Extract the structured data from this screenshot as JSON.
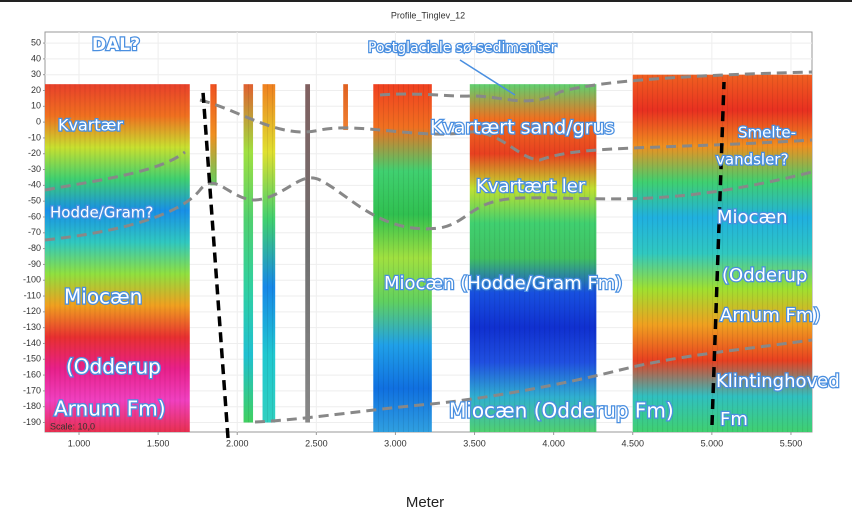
{
  "chart_data": {
    "type": "profile",
    "title": "Profile_Tinglev_12",
    "x_label": "Meter",
    "scale_note": "Scale: 10,0",
    "xlim": [
      785,
      5633
    ],
    "ylim": [
      -196,
      57
    ],
    "xticks": [
      {
        "value": 1000,
        "label": "1.000"
      },
      {
        "value": 1500,
        "label": "1.500"
      },
      {
        "value": 2000,
        "label": "2.000"
      },
      {
        "value": 2500,
        "label": "2.500"
      },
      {
        "value": 3000,
        "label": "3.000"
      },
      {
        "value": 3500,
        "label": "3.500"
      },
      {
        "value": 4000,
        "label": "4.000"
      },
      {
        "value": 4500,
        "label": "4.500"
      },
      {
        "value": 5000,
        "label": "5.000"
      },
      {
        "value": 5500,
        "label": "5.500"
      }
    ],
    "yticks": [
      50,
      40,
      30,
      20,
      10,
      0,
      -10,
      -20,
      -30,
      -40,
      -50,
      -60,
      -70,
      -80,
      -90,
      -100,
      -110,
      -120,
      -130,
      -140,
      -150,
      -160,
      -170,
      -180,
      -190
    ],
    "grid": true,
    "columns": [
      {
        "x": [
          785,
          1700
        ],
        "y": [
          24,
          -196
        ],
        "colors": [
          "#e8402a",
          "#f07020",
          "#c8e030",
          "#40d070",
          "#1890e8",
          "#30c8c0",
          "#90e040",
          "#f0a020",
          "#e83030",
          "#e8208a",
          "#f040c0",
          "#e83050"
        ]
      },
      {
        "x": [
          1830,
          1870
        ],
        "y": [
          24,
          -40
        ],
        "colors": [
          "#f05020",
          "#f09020",
          "#60d060"
        ]
      },
      {
        "x": [
          2040,
          2100
        ],
        "y": [
          24,
          -190
        ],
        "colors": [
          "#e06030",
          "#a0e040",
          "#50d070",
          "#30d0a0",
          "#20c0d0",
          "#40d060"
        ]
      },
      {
        "x": [
          2160,
          2240
        ],
        "y": [
          24,
          -190
        ],
        "colors": [
          "#f08020",
          "#e0e030",
          "#40d070",
          "#1888e8",
          "#20c8d0",
          "#30d0c0"
        ]
      },
      {
        "x": [
          2430,
          2460
        ],
        "y": [
          24,
          -190
        ],
        "colors": [
          "#806060",
          "#707070",
          "#888888"
        ]
      },
      {
        "x": [
          2670,
          2700
        ],
        "y": [
          24,
          -5
        ],
        "colors": [
          "#e06020",
          "#f08030"
        ]
      },
      {
        "x": [
          2860,
          3230
        ],
        "y": [
          24,
          -196
        ],
        "colors": [
          "#f04020",
          "#f07020",
          "#40d070",
          "#30c050",
          "#a0e040",
          "#60d060",
          "#20a0e8",
          "#1070e0",
          "#30a0e0"
        ]
      },
      {
        "x": [
          3470,
          4270
        ],
        "y": [
          24,
          -196
        ],
        "colors": [
          "#60d070",
          "#f07020",
          "#e84020",
          "#c0e030",
          "#40d070",
          "#40c060",
          "#1850e0",
          "#1030d0",
          "#2050e0",
          "#30b0d0",
          "#50d070"
        ]
      },
      {
        "x": [
          4500,
          5633
        ],
        "y": [
          30,
          -196
        ],
        "colors": [
          "#f06020",
          "#e83020",
          "#f09020",
          "#40d070",
          "#20b0e0",
          "#30c8c0",
          "#a0e030",
          "#f0a020",
          "#e84020",
          "#30c0c0",
          "#40d070"
        ]
      }
    ],
    "annotations": [
      "DAL?",
      "Postglaciale sø-sedimenter",
      "Kvartær",
      "Kvartært sand/grus",
      "Smelte-",
      "vandsler?",
      "Kvartært ler",
      "Hodde/Gram?",
      "Miocæn",
      "(Odderup",
      "Arnum Fm)",
      "Miocæn (Hodde/Gram Fm)",
      "Miocæn (Odderup Fm)",
      "Miocæn",
      "(Odderup",
      "Arnum Fm)",
      "Klintinghoved",
      "Fm"
    ]
  }
}
